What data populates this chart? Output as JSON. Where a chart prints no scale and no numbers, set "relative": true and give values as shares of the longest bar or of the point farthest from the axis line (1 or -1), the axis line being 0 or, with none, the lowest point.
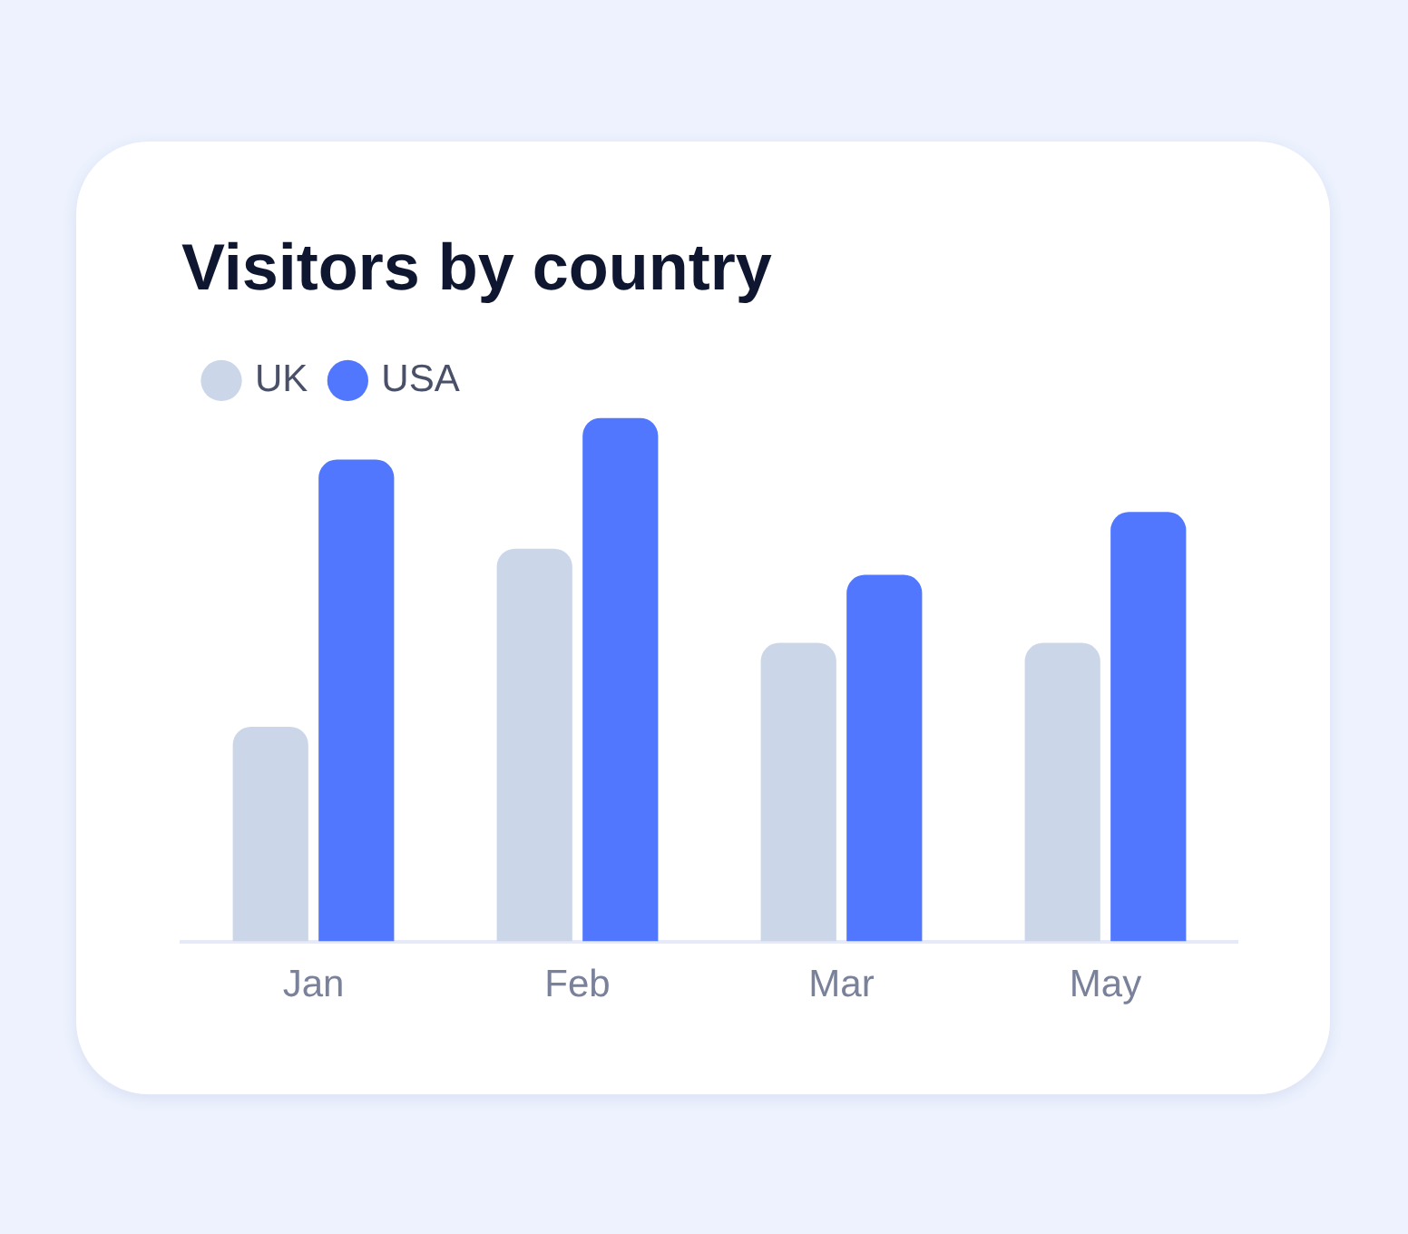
{
  "chart_data": {
    "type": "bar",
    "title": "Visitors by country",
    "categories": [
      "Jan",
      "Feb",
      "Mar",
      "May"
    ],
    "relative": true,
    "legend": "top left",
    "series": [
      {
        "name": "UK",
        "color": "#cbd7e9",
        "values": [
          0.41,
          0.75,
          0.57,
          0.57
        ]
      },
      {
        "name": "USA",
        "color": "#5077fe",
        "values": [
          0.92,
          1,
          0.7,
          0.82
        ]
      }
    ]
  }
}
